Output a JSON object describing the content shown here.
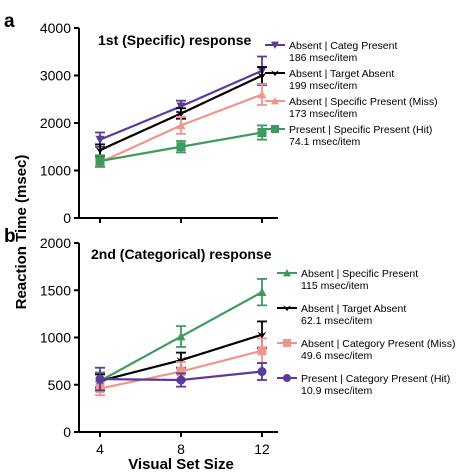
{
  "figure": {
    "ylabel": "Reaction Time (msec)",
    "xlabel": "Visual Set Size"
  },
  "chart_data": [
    {
      "panel": "a",
      "type": "line",
      "title": "1st (Specific) response",
      "x": [
        4,
        8,
        12
      ],
      "xticks": [
        "4",
        "8",
        "12"
      ],
      "ylim": [
        0,
        4000
      ],
      "yticks": [
        "0",
        "1000",
        "2000",
        "3000",
        "4000"
      ],
      "ylabel": "Reaction Time (msec)",
      "legend_position": "right",
      "series": [
        {
          "name": "Absent | Categ Present",
          "slope": "186 msec/item",
          "color": "#5b3a9e",
          "marker": "triangle-down",
          "values": [
            1650,
            2350,
            3100
          ],
          "errors": [
            150,
            120,
            300
          ]
        },
        {
          "name": "Absent | Target Absent",
          "slope": "199 msec/item",
          "color": "#000000",
          "marker": "arrow-down",
          "values": [
            1430,
            2200,
            3000
          ],
          "errors": [
            120,
            110,
            180
          ]
        },
        {
          "name": "Absent | Specific Present (Miss)",
          "slope": "173 msec/item",
          "color": "#f0958c",
          "marker": "triangle-up",
          "values": [
            1170,
            1950,
            2600
          ],
          "errors": [
            100,
            180,
            220
          ]
        },
        {
          "name": "Present | Specific Present (Hit)",
          "slope": "74.1 msec/item",
          "color": "#3e9a5e",
          "marker": "square",
          "values": [
            1200,
            1500,
            1800
          ],
          "errors": [
            120,
            120,
            150
          ]
        }
      ]
    },
    {
      "panel": "b",
      "type": "line",
      "title": "2nd (Categorical) response",
      "x": [
        4,
        8,
        12
      ],
      "xticks": [
        "4",
        "8",
        "12"
      ],
      "ylim": [
        0,
        2000
      ],
      "yticks": [
        "0",
        "500",
        "1000",
        "1500",
        "2000"
      ],
      "ylabel": "Reaction Time (msec)",
      "xlabel": "Visual Set Size",
      "legend_position": "right",
      "series": [
        {
          "name": "Absent | Specific Present",
          "slope": "115 msec/item",
          "color": "#3e9a5e",
          "marker": "triangle-up",
          "values": [
            540,
            1010,
            1480
          ],
          "errors": [
            90,
            110,
            140
          ]
        },
        {
          "name": "Absent | Target Absent",
          "slope": "62.1 msec/item",
          "color": "#000000",
          "marker": "arrow-down",
          "values": [
            540,
            760,
            1030
          ],
          "errors": [
            70,
            80,
            140
          ]
        },
        {
          "name": "Absent | Category Present (Miss)",
          "slope": "49.6 msec/item",
          "color": "#f0958c",
          "marker": "square",
          "values": [
            460,
            640,
            860
          ],
          "errors": [
            70,
            100,
            130
          ]
        },
        {
          "name": "Present | Category Present (Hit)",
          "slope": "10.9 msec/item",
          "color": "#5b3a9e",
          "marker": "circle",
          "values": [
            560,
            550,
            640
          ],
          "errors": [
            120,
            70,
            90
          ]
        }
      ]
    }
  ]
}
